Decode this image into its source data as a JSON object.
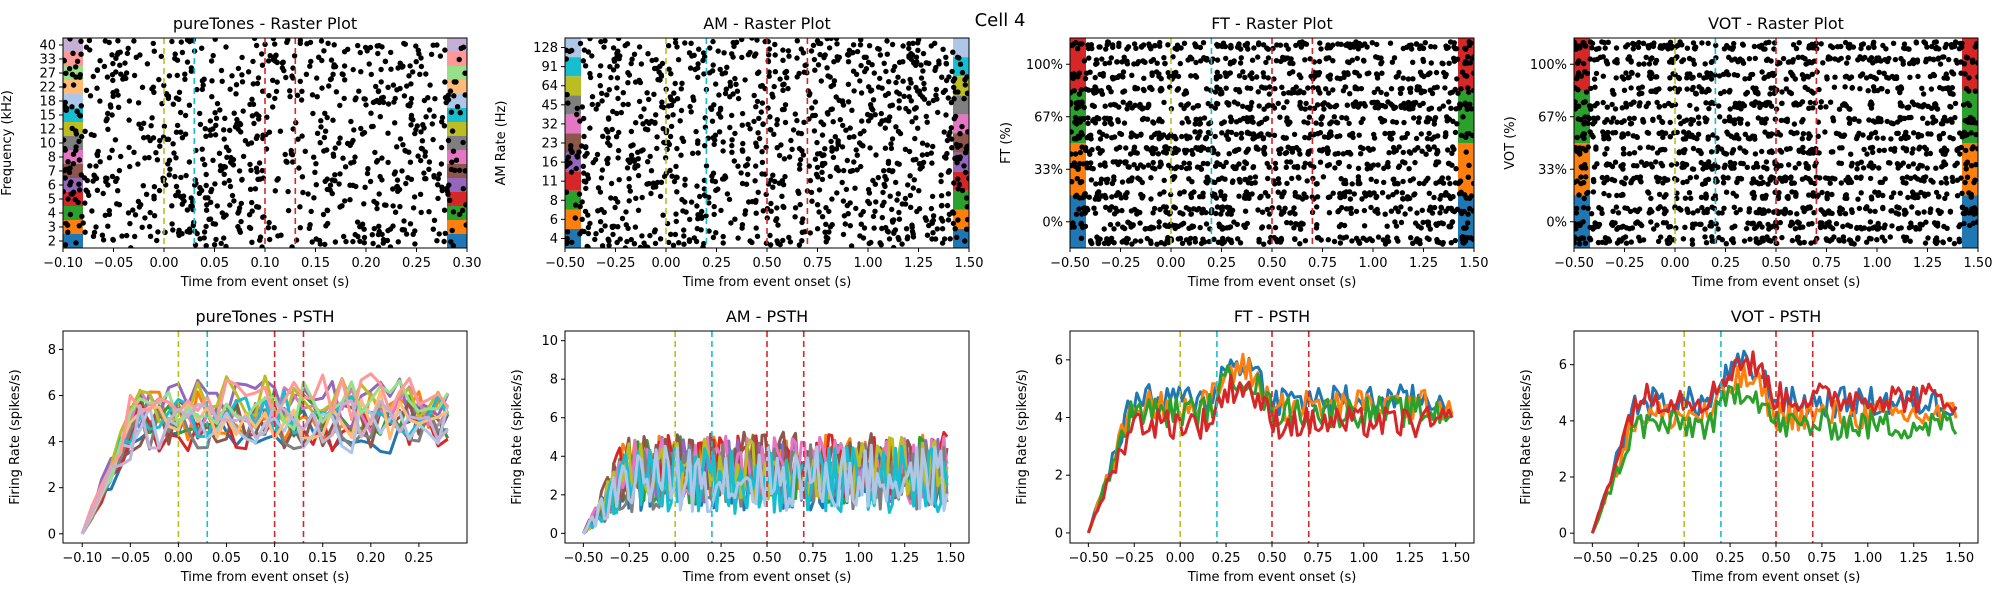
{
  "figure_title": "Cell 4",
  "chart_data": [
    {
      "type": "scatter",
      "panel": "raster",
      "title": "pureTones - Raster Plot",
      "xlabel": "Time from event onset (s)",
      "ylabel": "Frequency (kHz)",
      "xlim": [
        -0.1,
        0.3
      ],
      "xticks": [
        "−0.10",
        "−0.05",
        "0.00",
        "0.05",
        "0.10",
        "0.15",
        "0.20",
        "0.25",
        "0.30"
      ],
      "xtick_values": [
        -0.1,
        -0.05,
        0,
        0.05,
        0.1,
        0.15,
        0.2,
        0.25,
        0.3
      ],
      "categories": [
        "2",
        "3",
        "4",
        "5",
        "6",
        "7",
        "8",
        "10",
        "12",
        "15",
        "18",
        "22",
        "27",
        "33",
        "40"
      ],
      "event_lines": [
        {
          "x": 0.0,
          "color": "#bcbd22"
        },
        {
          "x": 0.03,
          "color": "#17becf"
        },
        {
          "x": 0.1,
          "color": "#d62728"
        },
        {
          "x": 0.13,
          "color": "#d62728"
        }
      ]
    },
    {
      "type": "scatter",
      "panel": "raster",
      "title": "AM - Raster Plot",
      "xlabel": "Time from event onset (s)",
      "ylabel": "AM Rate (Hz)",
      "xlim": [
        -0.5,
        1.5
      ],
      "xticks": [
        "−0.50",
        "−0.25",
        "0.00",
        "0.25",
        "0.50",
        "0.75",
        "1.00",
        "1.25",
        "1.50"
      ],
      "xtick_values": [
        -0.5,
        -0.25,
        0,
        0.25,
        0.5,
        0.75,
        1.0,
        1.25,
        1.5
      ],
      "categories": [
        "4",
        "6",
        "8",
        "11",
        "16",
        "23",
        "32",
        "45",
        "64",
        "91",
        "128"
      ],
      "event_lines": [
        {
          "x": 0.0,
          "color": "#bcbd22"
        },
        {
          "x": 0.2,
          "color": "#17becf"
        },
        {
          "x": 0.5,
          "color": "#d62728"
        },
        {
          "x": 0.7,
          "color": "#d62728"
        }
      ]
    },
    {
      "type": "scatter",
      "panel": "raster",
      "title": "FT - Raster Plot",
      "xlabel": "Time from event onset (s)",
      "ylabel": "FT (%)",
      "xlim": [
        -0.5,
        1.5
      ],
      "xticks": [
        "−0.50",
        "−0.25",
        "0.00",
        "0.25",
        "0.50",
        "0.75",
        "1.00",
        "1.25",
        "1.50"
      ],
      "xtick_values": [
        -0.5,
        -0.25,
        0,
        0.25,
        0.5,
        0.75,
        1.0,
        1.25,
        1.5
      ],
      "categories": [
        "0%",
        "33%",
        "67%",
        "100%"
      ],
      "event_lines": [
        {
          "x": 0.0,
          "color": "#bcbd22"
        },
        {
          "x": 0.2,
          "color": "#17becf"
        },
        {
          "x": 0.5,
          "color": "#d62728"
        },
        {
          "x": 0.7,
          "color": "#d62728"
        }
      ]
    },
    {
      "type": "scatter",
      "panel": "raster",
      "title": "VOT - Raster Plot",
      "xlabel": "Time from event onset (s)",
      "ylabel": "VOT (%)",
      "xlim": [
        -0.5,
        1.5
      ],
      "xticks": [
        "−0.50",
        "−0.25",
        "0.00",
        "0.25",
        "0.50",
        "0.75",
        "1.00",
        "1.25",
        "1.50"
      ],
      "xtick_values": [
        -0.5,
        -0.25,
        0,
        0.25,
        0.5,
        0.75,
        1.0,
        1.25,
        1.5
      ],
      "categories": [
        "0%",
        "33%",
        "67%",
        "100%"
      ],
      "event_lines": [
        {
          "x": 0.0,
          "color": "#bcbd22"
        },
        {
          "x": 0.2,
          "color": "#17becf"
        },
        {
          "x": 0.5,
          "color": "#d62728"
        },
        {
          "x": 0.7,
          "color": "#d62728"
        }
      ]
    },
    {
      "type": "line",
      "panel": "psth",
      "title": "pureTones - PSTH",
      "xlabel": "Time from event onset (s)",
      "ylabel": "Firing Rate (spikes/s)",
      "xlim": [
        -0.12,
        0.3
      ],
      "ylim": [
        -0.4,
        8.8
      ],
      "xticks": [
        "−0.10",
        "−0.05",
        "0.00",
        "0.05",
        "0.10",
        "0.15",
        "0.20",
        "0.25"
      ],
      "xtick_values": [
        -0.1,
        -0.05,
        0,
        0.05,
        0.1,
        0.15,
        0.2,
        0.25
      ],
      "yticks": [
        "0",
        "2",
        "4",
        "6",
        "8"
      ],
      "ytick_values": [
        0,
        2,
        4,
        6,
        8
      ],
      "x_start": -0.1,
      "x_end": 0.28,
      "n_series": 15,
      "peak": 5.2,
      "event_lines": [
        {
          "x": 0.0,
          "color": "#bcbd22"
        },
        {
          "x": 0.03,
          "color": "#17becf"
        },
        {
          "x": 0.1,
          "color": "#d62728"
        },
        {
          "x": 0.13,
          "color": "#d62728"
        }
      ]
    },
    {
      "type": "line",
      "panel": "psth",
      "title": "AM - PSTH",
      "xlabel": "Time from event onset (s)",
      "ylabel": "Firing Rate (spikes/s)",
      "xlim": [
        -0.6,
        1.6
      ],
      "ylim": [
        -0.5,
        10.5
      ],
      "xticks": [
        "−0.50",
        "−0.25",
        "0.00",
        "0.25",
        "0.50",
        "0.75",
        "1.00",
        "1.25",
        "1.50"
      ],
      "xtick_values": [
        -0.5,
        -0.25,
        0,
        0.25,
        0.5,
        0.75,
        1.0,
        1.25,
        1.5
      ],
      "yticks": [
        "0",
        "2",
        "4",
        "6",
        "8",
        "10"
      ],
      "ytick_values": [
        0,
        2,
        4,
        6,
        8,
        10
      ],
      "x_start": -0.5,
      "x_end": 1.48,
      "n_series": 11,
      "peak": 3.2,
      "event_lines": [
        {
          "x": 0.0,
          "color": "#bcbd22"
        },
        {
          "x": 0.2,
          "color": "#17becf"
        },
        {
          "x": 0.5,
          "color": "#d62728"
        },
        {
          "x": 0.7,
          "color": "#d62728"
        }
      ]
    },
    {
      "type": "line",
      "panel": "psth",
      "title": "FT - PSTH",
      "xlabel": "Time from event onset (s)",
      "ylabel": "Firing Rate (spikes/s)",
      "xlim": [
        -0.6,
        1.6
      ],
      "ylim": [
        -0.35,
        7.0
      ],
      "xticks": [
        "−0.50",
        "−0.25",
        "0.00",
        "0.25",
        "0.50",
        "0.75",
        "1.00",
        "1.25",
        "1.50"
      ],
      "xtick_values": [
        -0.5,
        -0.25,
        0,
        0.25,
        0.5,
        0.75,
        1.0,
        1.25,
        1.5
      ],
      "yticks": [
        "0",
        "2",
        "4",
        "6"
      ],
      "ytick_values": [
        0,
        2,
        4,
        6
      ],
      "x_start": -0.5,
      "x_end": 1.48,
      "n_series": 4,
      "peak": 4.2,
      "event_lines": [
        {
          "x": 0.0,
          "color": "#bcbd22"
        },
        {
          "x": 0.2,
          "color": "#17becf"
        },
        {
          "x": 0.5,
          "color": "#d62728"
        },
        {
          "x": 0.7,
          "color": "#d62728"
        }
      ]
    },
    {
      "type": "line",
      "panel": "psth",
      "title": "VOT - PSTH",
      "xlabel": "Time from event onset (s)",
      "ylabel": "Firing Rate (spikes/s)",
      "xlim": [
        -0.6,
        1.6
      ],
      "ylim": [
        -0.35,
        7.2
      ],
      "xticks": [
        "−0.50",
        "−0.25",
        "0.00",
        "0.25",
        "0.50",
        "0.75",
        "1.00",
        "1.25",
        "1.50"
      ],
      "xtick_values": [
        -0.5,
        -0.25,
        0,
        0.25,
        0.5,
        0.75,
        1.0,
        1.25,
        1.5
      ],
      "yticks": [
        "0",
        "2",
        "4",
        "6"
      ],
      "ytick_values": [
        0,
        2,
        4,
        6
      ],
      "x_start": -0.5,
      "x_end": 1.48,
      "n_series": 4,
      "peak": 4.3,
      "event_lines": [
        {
          "x": 0.0,
          "color": "#bcbd22"
        },
        {
          "x": 0.2,
          "color": "#17becf"
        },
        {
          "x": 0.5,
          "color": "#d62728"
        },
        {
          "x": 0.7,
          "color": "#d62728"
        }
      ]
    }
  ],
  "colors": {
    "palette": [
      "#1f77b4",
      "#ff7f0e",
      "#2ca02c",
      "#d62728",
      "#9467bd",
      "#8c564b",
      "#e377c2",
      "#7f7f7f",
      "#bcbd22",
      "#17becf",
      "#aec7e8",
      "#ffbb78",
      "#98df8a",
      "#ff9896",
      "#c5b0d5"
    ],
    "spike": "#000000",
    "event_onset": "#bcbd22",
    "event_cyan": "#17becf",
    "event_red": "#d62728"
  }
}
